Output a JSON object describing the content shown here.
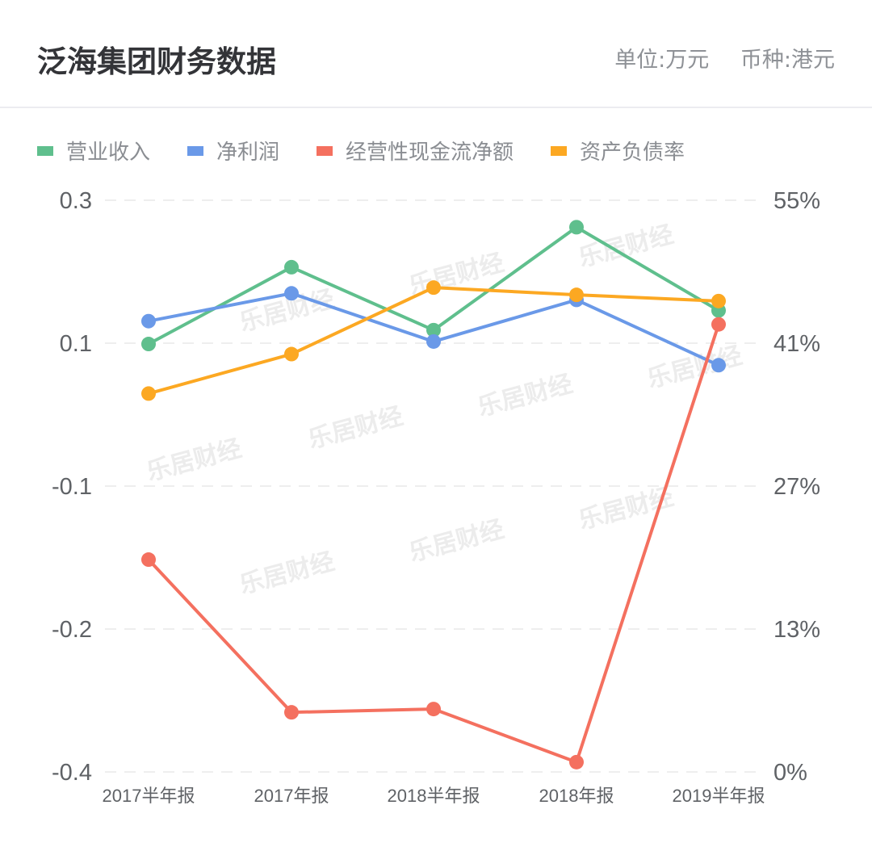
{
  "header": {
    "title": "泛海集团财务数据",
    "unit": "单位:万元",
    "currency": "币种:港元"
  },
  "legend": [
    {
      "label": "营业收入",
      "color": "#5fbf8d"
    },
    {
      "label": "净利润",
      "color": "#6a99e8"
    },
    {
      "label": "经营性现金流净额",
      "color": "#f4705f"
    },
    {
      "label": "资产负债率",
      "color": "#fca822"
    }
  ],
  "watermark": "乐居财经",
  "chart_data": {
    "type": "line",
    "title": "泛海集团财务数据",
    "categories": [
      "2017半年报",
      "2017年报",
      "2018半年报",
      "2018年报",
      "2019半年报"
    ],
    "series": [
      {
        "name": "营业收入",
        "axis": "left",
        "color": "#5fbf8d",
        "values": [
          0.124,
          0.218,
          0.141,
          0.267,
          0.165
        ]
      },
      {
        "name": "净利润",
        "axis": "left",
        "color": "#6a99e8",
        "values": [
          0.152,
          0.186,
          0.127,
          0.178,
          0.098
        ]
      },
      {
        "name": "经营性现金流净额",
        "axis": "left",
        "color": "#f4705f",
        "values": [
          -0.14,
          -0.327,
          -0.323,
          -0.388,
          0.148
        ]
      },
      {
        "name": "资产负债率",
        "axis": "right",
        "color": "#fca822",
        "values": [
          36.4,
          40.2,
          46.6,
          45.9,
          45.3
        ]
      }
    ],
    "left_axis": {
      "ticks": [
        "0.3",
        "0.1",
        "-0.1",
        "-0.2",
        "-0.4"
      ],
      "range": [
        -0.4,
        0.3
      ]
    },
    "right_axis": {
      "ticks": [
        "55%",
        "41%",
        "27%",
        "13%",
        "0%"
      ],
      "range": [
        0,
        55
      ]
    },
    "xlabel": "",
    "ylabel": "",
    "grid": true,
    "legend_position": "top"
  }
}
